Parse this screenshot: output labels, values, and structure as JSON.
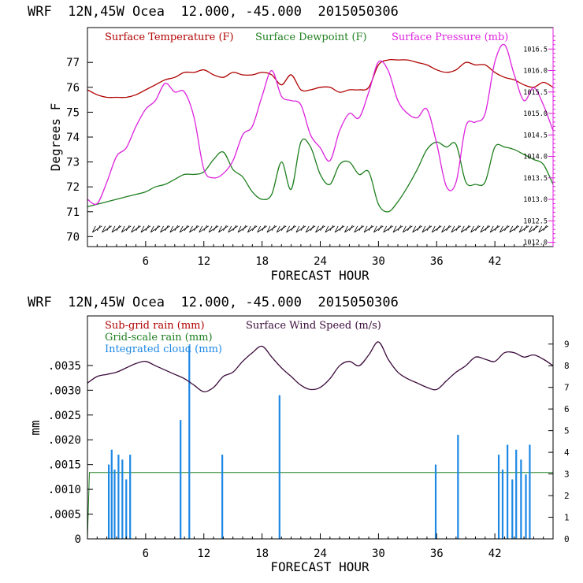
{
  "header_top": "WRF  12N,45W Ocea  12.000, -45.000  2015050306",
  "header_bottom": "WRF  12N,45W Ocea  12.000, -45.000  2015050306",
  "colors": {
    "red": "#b00000",
    "green": "#1e7e1e",
    "magenta": "#dd22dd",
    "purple": "#3a0a3a",
    "blue": "#1e88e5",
    "axis": "#000000"
  },
  "chart_data": [
    {
      "type": "line",
      "xlabel": "FORECAST HOUR",
      "ylabel": "Degrees F",
      "xlim": [
        0,
        48
      ],
      "ylim": [
        69.6,
        78.4
      ],
      "x_ticks": [
        6,
        12,
        18,
        24,
        30,
        36,
        42
      ],
      "y_ticks": [
        70,
        71,
        72,
        73,
        74,
        75,
        76,
        77
      ],
      "y2_label": "Surface Pressure (mb)",
      "y2lim": [
        1011.9,
        1017.0
      ],
      "y2_ticks": [
        "1012.0",
        "1012.5",
        "1013.0",
        "1013.5",
        "1014.0",
        "1014.5",
        "1015.0",
        "1015.5",
        "1016.0",
        "1016.5"
      ],
      "series": [
        {
          "name": "Surface Temperature (F)",
          "axis": "left",
          "x": [
            0,
            1,
            2,
            3,
            4,
            5,
            6,
            7,
            8,
            9,
            10,
            11,
            12,
            13,
            14,
            15,
            16,
            17,
            18,
            19,
            20,
            21,
            22,
            23,
            24,
            25,
            26,
            27,
            28,
            29,
            30,
            31,
            32,
            33,
            34,
            35,
            36,
            37,
            38,
            39,
            40,
            41,
            42,
            43,
            44,
            45,
            46,
            47,
            48
          ],
          "values": [
            75.9,
            75.7,
            75.6,
            75.6,
            75.6,
            75.7,
            75.9,
            76.1,
            76.3,
            76.4,
            76.6,
            76.6,
            76.7,
            76.5,
            76.4,
            76.6,
            76.5,
            76.5,
            76.6,
            76.5,
            76.1,
            76.5,
            75.9,
            75.9,
            76.0,
            76.0,
            75.8,
            75.9,
            75.9,
            76.0,
            76.9,
            77.1,
            77.1,
            77.1,
            77.0,
            76.9,
            76.7,
            76.6,
            76.7,
            77.0,
            76.9,
            76.9,
            76.6,
            76.4,
            76.3,
            76.1,
            76.0,
            76.2,
            76.0
          ]
        },
        {
          "name": "Surface Dewpoint (F)",
          "axis": "left",
          "x": [
            0,
            1,
            2,
            3,
            4,
            5,
            6,
            7,
            8,
            9,
            10,
            11,
            12,
            13,
            14,
            15,
            16,
            17,
            18,
            19,
            20,
            21,
            22,
            23,
            24,
            25,
            26,
            27,
            28,
            29,
            30,
            31,
            32,
            33,
            34,
            35,
            36,
            37,
            38,
            39,
            40,
            41,
            42,
            43,
            44,
            45,
            46,
            47,
            48
          ],
          "values": [
            71.2,
            71.3,
            71.4,
            71.5,
            71.6,
            71.7,
            71.8,
            72.0,
            72.1,
            72.3,
            72.5,
            72.5,
            72.6,
            73.1,
            73.4,
            72.7,
            72.4,
            71.8,
            71.5,
            71.7,
            73.0,
            71.9,
            73.8,
            73.6,
            72.5,
            72.1,
            72.9,
            73.0,
            72.5,
            72.6,
            71.3,
            71.0,
            71.4,
            72.0,
            72.7,
            73.5,
            73.8,
            73.6,
            73.7,
            72.2,
            72.1,
            72.2,
            73.6,
            73.6,
            73.5,
            73.3,
            73.1,
            72.9,
            72.1
          ]
        },
        {
          "name": "Surface Pressure (mb)",
          "axis": "right",
          "x": [
            0,
            1,
            2,
            3,
            4,
            5,
            6,
            7,
            8,
            9,
            10,
            11,
            12,
            13,
            14,
            15,
            16,
            17,
            18,
            19,
            20,
            21,
            22,
            23,
            24,
            25,
            26,
            27,
            28,
            29,
            30,
            31,
            32,
            33,
            34,
            35,
            36,
            37,
            38,
            39,
            40,
            41,
            42,
            43,
            44,
            45,
            46,
            47,
            48
          ],
          "values": [
            1013.0,
            1012.9,
            1013.4,
            1014.0,
            1014.2,
            1014.7,
            1015.1,
            1015.3,
            1015.7,
            1015.5,
            1015.5,
            1014.9,
            1013.7,
            1013.5,
            1013.6,
            1013.9,
            1014.5,
            1014.7,
            1015.4,
            1016.0,
            1015.4,
            1015.3,
            1015.2,
            1014.5,
            1014.2,
            1013.9,
            1014.6,
            1015.0,
            1014.9,
            1015.5,
            1016.2,
            1016.0,
            1015.3,
            1015.0,
            1014.9,
            1015.1,
            1014.3,
            1013.3,
            1013.4,
            1014.7,
            1014.8,
            1015.0,
            1016.2,
            1016.6,
            1015.9,
            1015.3,
            1015.6,
            1015.2,
            1014.6
          ]
        }
      ],
      "wind_barbs": "row of barbs near 70.3 F"
    },
    {
      "type": "line",
      "xlabel": "FORECAST HOUR",
      "ylabel": "mm",
      "xlim": [
        0,
        48
      ],
      "ylim": [
        0,
        0.0045
      ],
      "x_ticks": [
        6,
        12,
        18,
        24,
        30,
        36,
        42
      ],
      "y_ticks": [
        0,
        0.0005,
        0.001,
        0.0015,
        0.002,
        0.0025,
        0.003,
        0.0035
      ],
      "y_tick_labels": [
        "0",
        ".0005",
        ".0010",
        ".0015",
        ".0020",
        ".0025",
        ".0030",
        ".0035"
      ],
      "y2_label": "Surface Wind Speed (m/s)",
      "y2lim": [
        0,
        10.3
      ],
      "y2_ticks": [
        0,
        1,
        2,
        3,
        4,
        5,
        6,
        7,
        8,
        9
      ],
      "series": [
        {
          "name": "Sub-grid rain (mm)",
          "axis": "left",
          "x": [
            0,
            48
          ],
          "values": [
            0,
            0
          ]
        },
        {
          "name": "Grid-scale rain (mm)",
          "axis": "left",
          "x": [
            0,
            0.2,
            48
          ],
          "values": [
            0,
            0.00134,
            0.00134
          ]
        },
        {
          "name": "Integrated cloud (mm)",
          "axis": "left",
          "x": [
            2.2,
            2.5,
            2.8,
            3.2,
            3.6,
            4.0,
            4.4,
            9.6,
            10.5,
            13.9,
            19.8,
            35.9,
            38.2,
            42.4,
            42.8,
            43.3,
            43.8,
            44.2,
            44.7,
            45.2,
            45.6
          ],
          "values": [
            0.0015,
            0.0018,
            0.0014,
            0.0017,
            0.0016,
            0.0012,
            0.0017,
            0.0024,
            0.0039,
            0.0017,
            0.0029,
            0.0015,
            0.0021,
            0.0017,
            0.0014,
            0.0019,
            0.0012,
            0.0018,
            0.0016,
            0.0013,
            0.0019
          ]
        },
        {
          "name": "Surface Wind Speed (m/s)",
          "axis": "right",
          "x": [
            0,
            1,
            2,
            3,
            4,
            5,
            6,
            7,
            8,
            9,
            10,
            11,
            12,
            13,
            14,
            15,
            16,
            17,
            18,
            19,
            20,
            21,
            22,
            23,
            24,
            25,
            26,
            27,
            28,
            29,
            30,
            31,
            32,
            33,
            34,
            35,
            36,
            37,
            38,
            39,
            40,
            41,
            42,
            43,
            44,
            45,
            46,
            47,
            48
          ],
          "values": [
            7.2,
            7.5,
            7.6,
            7.7,
            7.9,
            8.1,
            8.2,
            8.0,
            7.8,
            7.6,
            7.4,
            7.1,
            6.8,
            7.0,
            7.5,
            7.7,
            8.2,
            8.6,
            8.9,
            8.4,
            7.9,
            7.5,
            7.1,
            6.9,
            7.0,
            7.4,
            8.0,
            8.2,
            8.0,
            8.5,
            9.1,
            8.3,
            7.7,
            7.4,
            7.2,
            7.0,
            6.9,
            7.3,
            7.7,
            8.0,
            8.4,
            8.3,
            8.2,
            8.6,
            8.6,
            8.4,
            8.5,
            8.3,
            8.0
          ]
        }
      ]
    }
  ]
}
